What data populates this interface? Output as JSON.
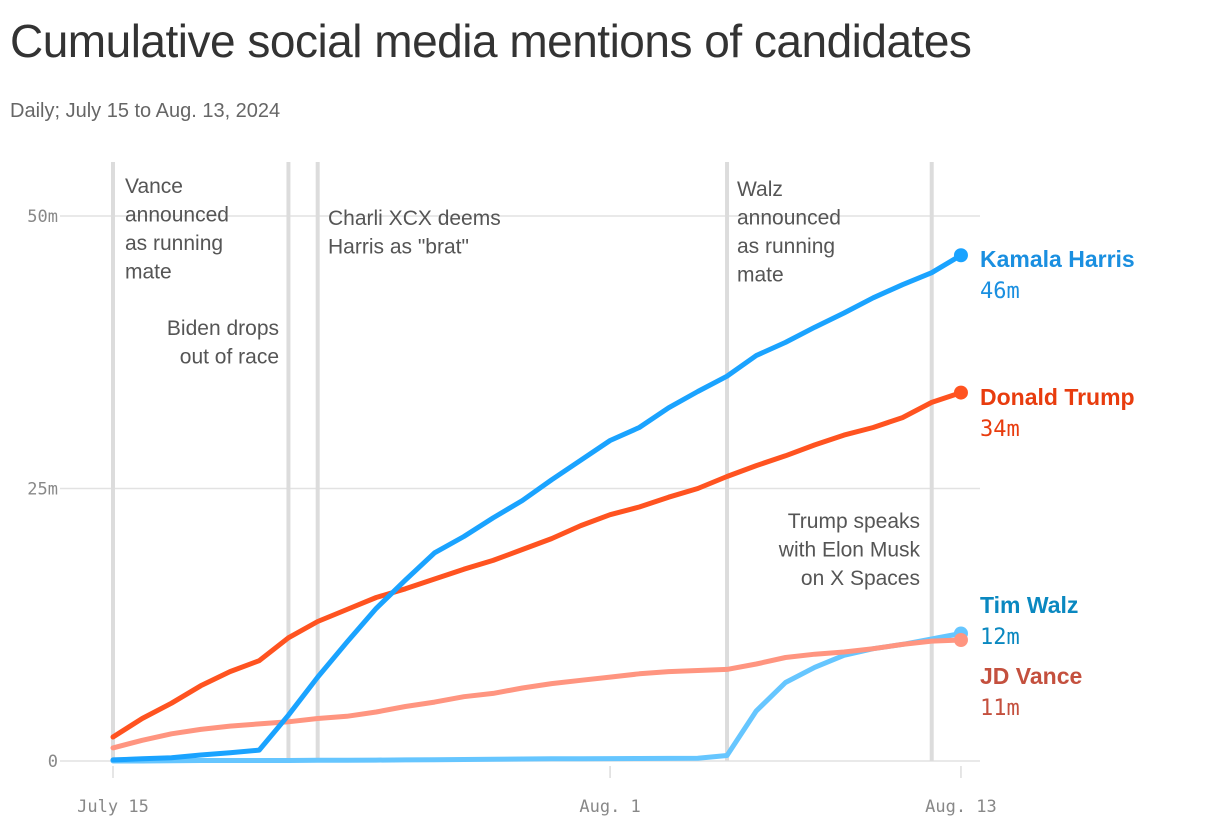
{
  "chart_data": {
    "type": "line",
    "title": "Cumulative social media mentions of candidates",
    "subtitle": "Daily; July 15 to Aug. 13, 2024",
    "x_start": "2024-07-15",
    "x_end": "2024-08-13",
    "x_ticks": [
      {
        "date": "2024-07-15",
        "label": "July 15"
      },
      {
        "date": "2024-08-01",
        "label": "Aug. 1"
      },
      {
        "date": "2024-08-13",
        "label": "Aug. 13"
      }
    ],
    "y_unit": "millions",
    "ylim": [
      0,
      55
    ],
    "y_ticks": [
      {
        "value": 0,
        "label": "0"
      },
      {
        "value": 25,
        "label": "25m"
      },
      {
        "value": 50,
        "label": "50m"
      }
    ],
    "grid": "horizontal",
    "series": [
      {
        "name": "Kamala Harris",
        "end_label": "46m",
        "color": "#1aa3ff",
        "label_color": "#1a8fe0",
        "values": [
          0.1,
          0.2,
          0.3,
          0.55,
          0.75,
          1.0,
          4.2,
          7.7,
          10.9,
          14.0,
          16.6,
          19.1,
          20.6,
          22.3,
          23.9,
          25.8,
          27.6,
          29.4,
          30.6,
          32.4,
          33.9,
          35.3,
          37.2,
          38.4,
          39.8,
          41.1,
          42.5,
          43.7,
          44.8,
          46.4
        ]
      },
      {
        "name": "Donald Trump",
        "end_label": "34m",
        "color": "#ff5320",
        "label_color": "#e83c0e",
        "values": [
          2.2,
          3.9,
          5.3,
          6.9,
          8.2,
          9.2,
          11.3,
          12.8,
          13.9,
          15.0,
          15.8,
          16.7,
          17.6,
          18.4,
          19.4,
          20.4,
          21.6,
          22.6,
          23.3,
          24.2,
          25.0,
          26.1,
          27.1,
          28.0,
          29.0,
          29.9,
          30.6,
          31.5,
          32.9,
          33.8
        ]
      },
      {
        "name": "Tim Walz",
        "end_label": "12m",
        "color": "#66c6ff",
        "label_color": "#0a88c0",
        "values": [
          0.0,
          0.0,
          0.02,
          0.05,
          0.05,
          0.05,
          0.05,
          0.06,
          0.07,
          0.08,
          0.1,
          0.12,
          0.14,
          0.16,
          0.18,
          0.2,
          0.21,
          0.22,
          0.23,
          0.24,
          0.26,
          0.5,
          4.6,
          7.2,
          8.6,
          9.7,
          10.3,
          10.7,
          11.2,
          11.7
        ]
      },
      {
        "name": "JD Vance",
        "end_label": "11m",
        "color": "#ff9580",
        "label_color": "#c4503e",
        "values": [
          1.2,
          1.9,
          2.5,
          2.9,
          3.2,
          3.4,
          3.6,
          3.9,
          4.1,
          4.5,
          5.0,
          5.4,
          5.9,
          6.2,
          6.7,
          7.1,
          7.4,
          7.7,
          8.0,
          8.2,
          8.3,
          8.4,
          8.9,
          9.5,
          9.8,
          10.0,
          10.3,
          10.7,
          11.0,
          11.1
        ]
      }
    ],
    "annotations": [
      {
        "date": "2024-07-15",
        "lines": [
          "Vance",
          "announced",
          "as running",
          "mate"
        ]
      },
      {
        "date": "2024-07-21",
        "lines": [
          "Biden drops",
          "out of race"
        ]
      },
      {
        "date": "2024-07-22",
        "lines": [
          "Charli XCX deems",
          "Harris as \"brat\""
        ]
      },
      {
        "date": "2024-08-05",
        "lines": [
          "Walz",
          "announced",
          "as running",
          "mate"
        ]
      },
      {
        "date": "2024-08-12",
        "lines": [
          "Trump speaks",
          "with Elon Musk",
          "on X Spaces"
        ]
      }
    ]
  }
}
